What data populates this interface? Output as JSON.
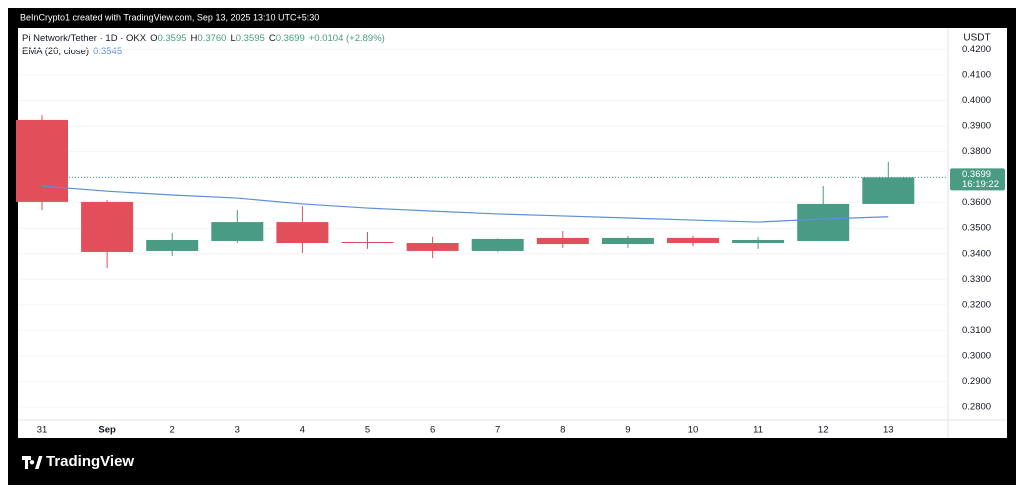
{
  "chart_data": {
    "type": "candlestick",
    "attribution": "BeInCrypto1 created with TradingView.com, Sep 13, 2025 13:10 UTC+5:30",
    "symbol": "Pi Network/Tether · 1D · OKX",
    "ohlc_legend": [
      {
        "key": "O",
        "value": "0.3595"
      },
      {
        "key": "H",
        "value": "0.3760"
      },
      {
        "key": "L",
        "value": "0.3595"
      },
      {
        "key": "C",
        "value": "0.3699"
      }
    ],
    "change": "+0.0104 (+2.89%)",
    "currency": "USDT",
    "brand": "TradingView",
    "categories": [
      "31",
      "Sep",
      "2",
      "3",
      "4",
      "5",
      "6",
      "7",
      "8",
      "9",
      "10",
      "11",
      "12",
      "13"
    ],
    "open": [
      0.3924,
      0.3603,
      0.3411,
      0.345,
      0.3524,
      0.3446,
      0.3442,
      0.3411,
      0.3462,
      0.3438,
      0.3462,
      0.3442,
      0.345,
      0.3595
    ],
    "high": [
      0.3943,
      0.3611,
      0.3481,
      0.3571,
      0.3587,
      0.3485,
      0.3466,
      0.346,
      0.3489,
      0.347,
      0.347,
      0.3466,
      0.3665,
      0.376
    ],
    "low": [
      0.3571,
      0.3344,
      0.3391,
      0.3442,
      0.3403,
      0.3419,
      0.3383,
      0.3407,
      0.3423,
      0.3423,
      0.343,
      0.3419,
      0.345,
      0.3595
    ],
    "close": [
      0.3603,
      0.3407,
      0.3454,
      0.3524,
      0.3442,
      0.3444,
      0.3411,
      0.3458,
      0.3438,
      0.3462,
      0.3442,
      0.3454,
      0.3595,
      0.3699
    ],
    "up_color": "#4a9b84",
    "down_color": "#e04f5a",
    "series": [
      {
        "name": "EMA (20, close)",
        "color": "#5b8fd8",
        "values": [
          0.3665,
          0.3645,
          0.363,
          0.3618,
          0.3595,
          0.3579,
          0.3567,
          0.3556,
          0.3548,
          0.354,
          0.3532,
          0.3524,
          0.3536,
          0.3545
        ],
        "last_label": "0.3545"
      }
    ],
    "last_price": {
      "value": 0.3699,
      "label": "0.3699",
      "countdown": "16:19:22"
    },
    "ylim": [
      0.2749,
      0.4284
    ],
    "yticks": [
      {
        "value": 0.28,
        "label": "0.2800"
      },
      {
        "value": 0.29,
        "label": "0.2900"
      },
      {
        "value": 0.3,
        "label": "0.3000"
      },
      {
        "value": 0.31,
        "label": "0.3100"
      },
      {
        "value": 0.32,
        "label": "0.3200"
      },
      {
        "value": 0.33,
        "label": "0.3300"
      },
      {
        "value": 0.34,
        "label": "0.3400"
      },
      {
        "value": 0.35,
        "label": "0.3500"
      },
      {
        "value": 0.36,
        "label": "0.3600"
      },
      {
        "value": 0.37,
        "label": "0.3700"
      },
      {
        "value": 0.38,
        "label": "0.3800"
      },
      {
        "value": 0.39,
        "label": "0.3900"
      },
      {
        "value": 0.4,
        "label": "0.4000"
      },
      {
        "value": 0.41,
        "label": "0.4100"
      },
      {
        "value": 0.42,
        "label": "0.4200"
      }
    ],
    "grid": true
  }
}
